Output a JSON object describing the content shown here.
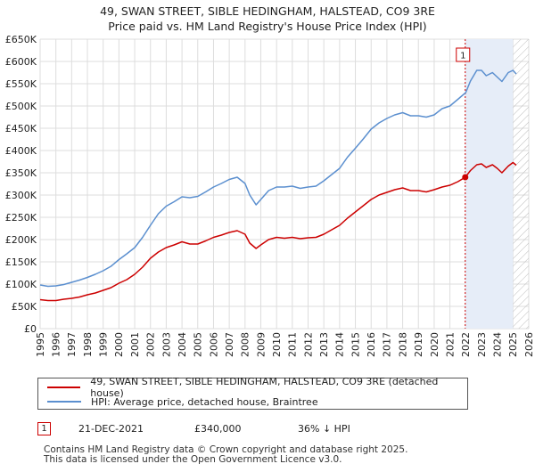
{
  "title": {
    "line1": "49, SWAN STREET, SIBLE HEDINGHAM, HALSTEAD, CO9 3RE",
    "line2": "Price paid vs. HM Land Registry's House Price Index (HPI)"
  },
  "colors": {
    "property": "#cc0000",
    "hpi": "#5b8fcf",
    "shade": "#e6edf8",
    "grid": "#dddddd"
  },
  "legend": {
    "property_label": "49, SWAN STREET, SIBLE HEDINGHAM, HALSTEAD, CO9 3RE (detached house)",
    "hpi_label": "HPI: Average price, detached house, Braintree"
  },
  "annotation": {
    "num": "1",
    "date": "21-DEC-2021",
    "price": "£340,000",
    "delta": "36% ↓ HPI"
  },
  "footer": {
    "line1": "Contains HM Land Registry data © Crown copyright and database right 2025.",
    "line2": "This data is licensed under the Open Government Licence v3.0."
  },
  "chart_data": {
    "type": "line",
    "xlim": [
      1995,
      2026
    ],
    "ylim": [
      0,
      650000
    ],
    "x_ticks": [
      1995,
      1996,
      1997,
      1998,
      1999,
      2000,
      2001,
      2002,
      2003,
      2004,
      2005,
      2006,
      2007,
      2008,
      2009,
      2010,
      2011,
      2012,
      2013,
      2014,
      2015,
      2016,
      2017,
      2018,
      2019,
      2020,
      2021,
      2022,
      2023,
      2024,
      2025,
      2026
    ],
    "y_ticks": [
      0,
      50000,
      100000,
      150000,
      200000,
      250000,
      300000,
      350000,
      400000,
      450000,
      500000,
      550000,
      600000,
      650000
    ],
    "y_tick_labels": [
      "£0",
      "£50K",
      "£100K",
      "£150K",
      "£200K",
      "£250K",
      "£300K",
      "£350K",
      "£400K",
      "£450K",
      "£500K",
      "£550K",
      "£600K",
      "£650K"
    ],
    "shaded_region": [
      2021.97,
      2025.0
    ],
    "hatch_from": 2025.0,
    "sale": {
      "x": 2021.97,
      "y": 340000,
      "label": "1"
    },
    "series": [
      {
        "name": "49, SWAN STREET, SIBLE HEDINGHAM, HALSTEAD, CO9 3RE (detached house)",
        "color": "#cc0000",
        "x": [
          1995,
          1995.5,
          1996,
          1996.5,
          1997,
          1997.5,
          1998,
          1998.5,
          1999,
          1999.5,
          2000,
          2000.5,
          2001,
          2001.5,
          2002,
          2002.5,
          2003,
          2003.5,
          2004,
          2004.5,
          2005,
          2005.5,
          2006,
          2006.5,
          2007,
          2007.5,
          2008,
          2008.3,
          2008.7,
          2009,
          2009.5,
          2010,
          2010.5,
          2011,
          2011.5,
          2012,
          2012.5,
          2013,
          2013.5,
          2014,
          2014.5,
          2015,
          2015.5,
          2016,
          2016.5,
          2017,
          2017.5,
          2018,
          2018.5,
          2019,
          2019.5,
          2020,
          2020.5,
          2021,
          2021.5,
          2021.97,
          2022.3,
          2022.7,
          2023,
          2023.3,
          2023.7,
          2024,
          2024.3,
          2024.7,
          2025,
          2025.2
        ],
        "y": [
          65000,
          63000,
          63000,
          66000,
          68000,
          71000,
          76000,
          80000,
          86000,
          92000,
          102000,
          110000,
          122000,
          138000,
          158000,
          172000,
          182000,
          188000,
          195000,
          190000,
          190000,
          197000,
          205000,
          210000,
          216000,
          220000,
          212000,
          192000,
          180000,
          188000,
          200000,
          205000,
          203000,
          205000,
          202000,
          204000,
          205000,
          212000,
          222000,
          232000,
          248000,
          262000,
          276000,
          290000,
          300000,
          306000,
          312000,
          316000,
          310000,
          310000,
          307000,
          312000,
          318000,
          322000,
          330000,
          340000,
          355000,
          368000,
          370000,
          362000,
          368000,
          360000,
          350000,
          365000,
          373000,
          367000
        ]
      },
      {
        "name": "HPI: Average price, detached house, Braintree",
        "color": "#5b8fcf",
        "x": [
          1995,
          1995.5,
          1996,
          1996.5,
          1997,
          1997.5,
          1998,
          1998.5,
          1999,
          1999.5,
          2000,
          2000.5,
          2001,
          2001.5,
          2002,
          2002.5,
          2003,
          2003.5,
          2004,
          2004.5,
          2005,
          2005.5,
          2006,
          2006.5,
          2007,
          2007.5,
          2008,
          2008.3,
          2008.7,
          2009,
          2009.5,
          2010,
          2010.5,
          2011,
          2011.5,
          2012,
          2012.5,
          2013,
          2013.5,
          2014,
          2014.5,
          2015,
          2015.5,
          2016,
          2016.5,
          2017,
          2017.5,
          2018,
          2018.5,
          2019,
          2019.5,
          2020,
          2020.5,
          2021,
          2021.5,
          2022,
          2022.3,
          2022.7,
          2023,
          2023.3,
          2023.7,
          2024,
          2024.3,
          2024.7,
          2025,
          2025.2
        ],
        "y": [
          98000,
          95000,
          96000,
          99000,
          104000,
          109000,
          115000,
          122000,
          130000,
          140000,
          155000,
          168000,
          182000,
          205000,
          232000,
          258000,
          275000,
          285000,
          296000,
          294000,
          297000,
          307000,
          318000,
          326000,
          335000,
          340000,
          326000,
          300000,
          278000,
          290000,
          310000,
          318000,
          318000,
          320000,
          315000,
          318000,
          320000,
          332000,
          346000,
          360000,
          385000,
          405000,
          426000,
          448000,
          462000,
          472000,
          480000,
          485000,
          478000,
          478000,
          475000,
          480000,
          494000,
          500000,
          515000,
          530000,
          556000,
          580000,
          580000,
          568000,
          575000,
          565000,
          555000,
          575000,
          580000,
          572000
        ]
      }
    ]
  }
}
